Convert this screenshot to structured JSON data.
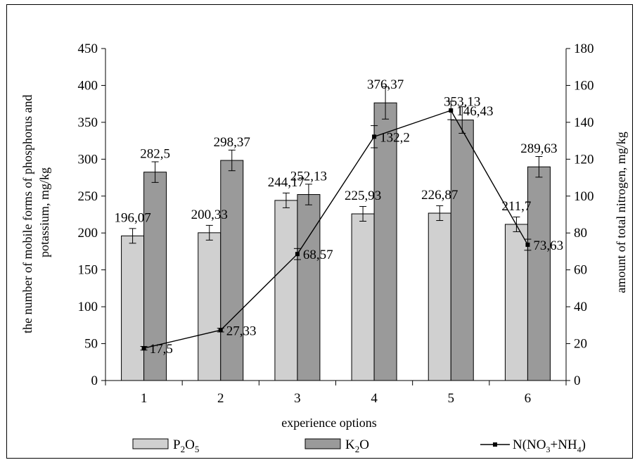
{
  "chart_data": {
    "type": "bar",
    "categories": [
      "1",
      "2",
      "3",
      "4",
      "5",
      "6"
    ],
    "xlabel": "experience options",
    "ylabel": "the number of mobile forms of phosphorus and potassium,  mg/kg",
    "ylabel_right": "amount of total nitrogen, mg/kg",
    "ylim": [
      0,
      450
    ],
    "ylim_right": [
      0,
      180
    ],
    "yticks": [
      "0",
      "50",
      "100",
      "150",
      "200",
      "250",
      "300",
      "350",
      "400",
      "450"
    ],
    "yticks_right": [
      "0",
      "20",
      "40",
      "60",
      "80",
      "100",
      "120",
      "140",
      "160",
      "180"
    ],
    "grid": false,
    "legend_position": "bottom",
    "series": [
      {
        "name": "P2O5",
        "kind": "bar",
        "axis": "left",
        "color": "#d0d0d0",
        "values": [
          196.07,
          200.33,
          244.17,
          225.93,
          226.87,
          211.7
        ],
        "labels": [
          "196,07",
          "200,33",
          "244,17",
          "225,93",
          "226,87",
          "211,7"
        ],
        "errors": [
          10,
          10,
          10,
          10,
          10,
          10
        ]
      },
      {
        "name": "K2O",
        "kind": "bar",
        "axis": "left",
        "color": "#9a9a9a",
        "values": [
          282.5,
          298.37,
          252.13,
          376.37,
          353.13,
          289.63
        ],
        "labels": [
          "282,5",
          "298,37",
          "252,13",
          "376,37",
          "353,13",
          "289,63"
        ],
        "errors": [
          14,
          14,
          14,
          22,
          18,
          14
        ]
      },
      {
        "name": "N(NO3+NH4)",
        "kind": "line",
        "axis": "right",
        "color": "#000000",
        "values": [
          17.5,
          27.33,
          68.57,
          132.2,
          146.43,
          73.63
        ],
        "labels": [
          "17,5",
          "27,33",
          "68,57",
          "132,2",
          "146,43",
          "73,63"
        ],
        "errors": [
          1,
          1,
          3,
          6,
          5,
          3
        ]
      }
    ]
  }
}
